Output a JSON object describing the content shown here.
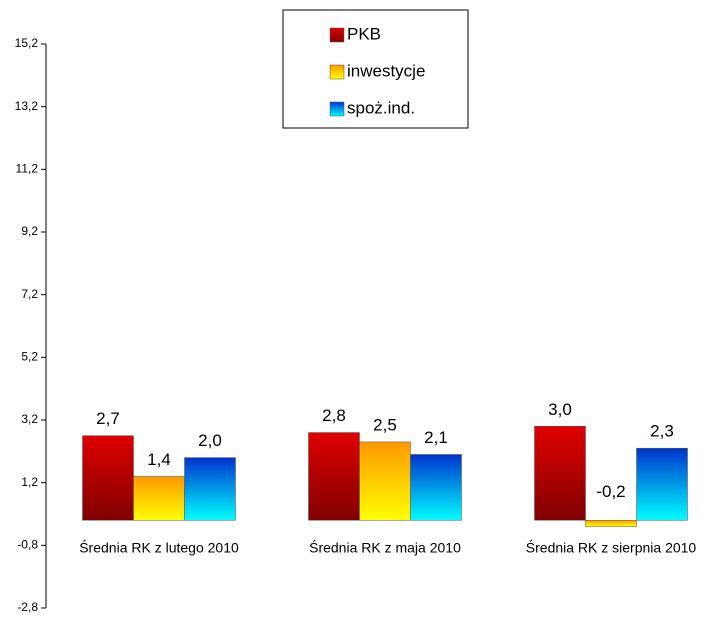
{
  "chart_data": {
    "type": "bar",
    "categories": [
      "Średnia RK z lutego 2010",
      "Średnia RK z maja 2010",
      "Średnia RK z sierpnia 2010"
    ],
    "series": [
      {
        "name": "PKB",
        "color": "#e00000",
        "values": [
          2.7,
          2.8,
          3.0
        ],
        "value_labels": [
          "2,7",
          "2,8",
          "3,0"
        ]
      },
      {
        "name": "inwestycje",
        "color": "#ff9900",
        "values": [
          1.4,
          2.5,
          -0.2
        ],
        "value_labels": [
          "1,4",
          "2,5",
          "-0,2"
        ]
      },
      {
        "name": "spoż.ind.",
        "color": "#0033cc",
        "values": [
          2.0,
          2.1,
          2.3
        ],
        "value_labels": [
          "2,0",
          "2,1",
          "2,3"
        ]
      }
    ],
    "ylim": [
      -2.8,
      15.2
    ],
    "yticks": [
      {
        "value": -2.8,
        "label": "-2,8"
      },
      {
        "value": -0.8,
        "label": "-0,8"
      },
      {
        "value": 1.2,
        "label": "1,2"
      },
      {
        "value": 3.2,
        "label": "3,2"
      },
      {
        "value": 5.2,
        "label": "5,2"
      },
      {
        "value": 7.2,
        "label": "7,2"
      },
      {
        "value": 9.2,
        "label": "9,2"
      },
      {
        "value": 11.2,
        "label": "11,2"
      },
      {
        "value": 13.2,
        "label": "13,2"
      },
      {
        "value": 15.2,
        "label": "15,2"
      }
    ],
    "legend": "top"
  }
}
